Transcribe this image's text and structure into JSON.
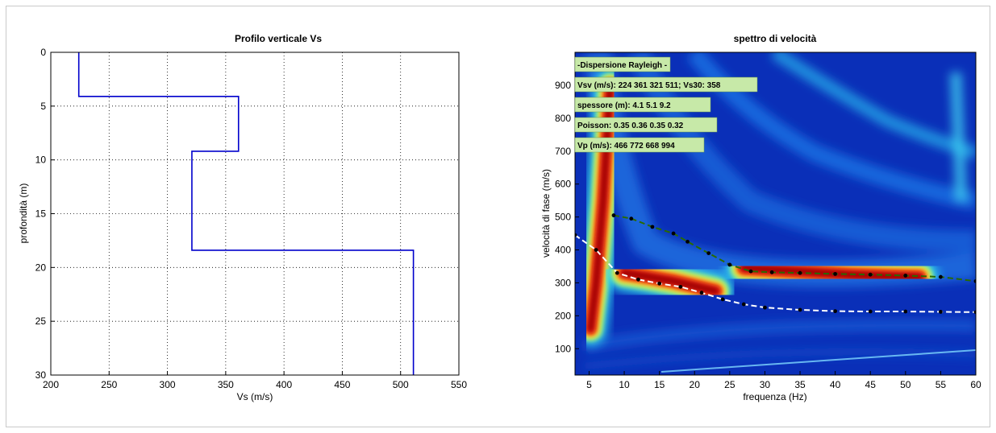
{
  "chart_data": [
    {
      "type": "line",
      "title": "Profilo verticale Vs",
      "xlabel": "Vs (m/s)",
      "ylabel": "profondità (m)",
      "xlim": [
        200,
        550
      ],
      "ylim": [
        0,
        30
      ],
      "y_reversed": true,
      "grid": true,
      "xticks": [
        200,
        250,
        300,
        350,
        400,
        450,
        500,
        550
      ],
      "yticks": [
        0,
        5,
        10,
        15,
        20,
        25,
        30
      ],
      "color": "#0000cc",
      "series": [
        {
          "x": [
            224,
            224,
            361,
            361,
            321,
            321,
            511,
            511
          ],
          "y": [
            0,
            4.1,
            4.1,
            9.2,
            9.2,
            18.4,
            18.4,
            30
          ]
        }
      ]
    },
    {
      "type": "heatmap",
      "title": "spettro di velocità",
      "xlabel": "frequenza (Hz)",
      "ylabel": "velocità di fase (m/s)",
      "xlim": [
        3,
        60
      ],
      "ylim": [
        20,
        1000
      ],
      "xticks": [
        5,
        10,
        15,
        20,
        25,
        30,
        35,
        40,
        45,
        50,
        55,
        60
      ],
      "yticks": [
        100,
        200,
        300,
        400,
        500,
        600,
        700,
        800,
        900
      ],
      "annotations": [
        "-Dispersione Rayleigh -",
        "Vsv (m/s): 224  361  321  511; Vs30: 358",
        "spessore (m): 4.1    5.1    9.2",
        "Poisson: 0.35  0.36  0.35  0.32",
        "Vp (m/s): 466  772  668  994"
      ],
      "ridges": [
        {
          "kind": "red",
          "x": [
            5.2,
            6.0,
            7.0,
            8.0
          ],
          "y": [
            160,
            300,
            550,
            900
          ]
        },
        {
          "kind": "red",
          "x": [
            10,
            13,
            17,
            21,
            23
          ],
          "y": [
            330,
            320,
            305,
            285,
            275
          ]
        },
        {
          "kind": "red",
          "x": [
            27,
            35,
            42,
            48,
            52
          ],
          "y": [
            345,
            335,
            325,
            320,
            318
          ]
        }
      ],
      "series": [
        {
          "style": "white-dashed",
          "x": [
            3,
            6,
            9,
            12,
            15,
            18,
            21,
            24,
            27,
            30,
            35,
            40,
            45,
            50,
            55,
            60
          ],
          "y": [
            445,
            400,
            330,
            310,
            298,
            288,
            270,
            250,
            235,
            225,
            218,
            214,
            213,
            213,
            212,
            211
          ]
        },
        {
          "style": "green-dashed",
          "x": [
            8.5,
            11,
            14,
            17,
            19,
            22,
            25,
            28,
            31,
            35,
            40,
            45,
            50,
            55,
            60
          ],
          "y": [
            505,
            495,
            470,
            450,
            425,
            390,
            355,
            335,
            332,
            330,
            327,
            325,
            322,
            318,
            305
          ]
        }
      ]
    }
  ]
}
